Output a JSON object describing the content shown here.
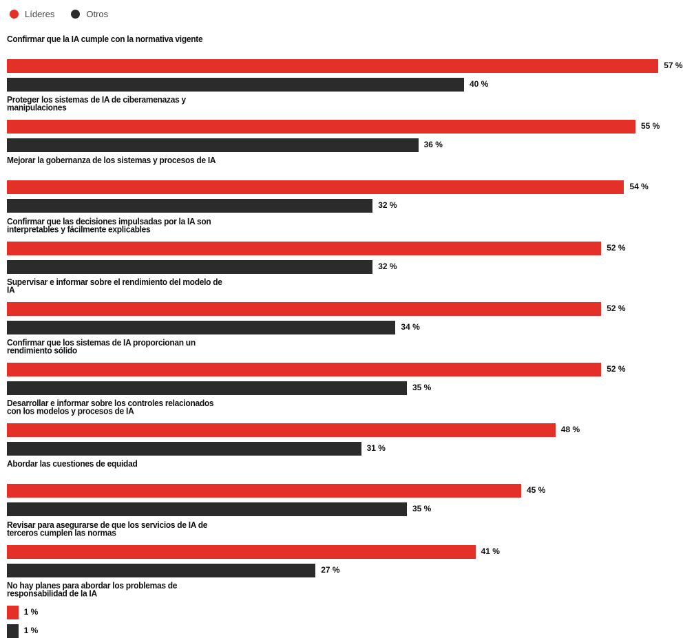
{
  "legend": [
    {
      "label": "Líderes",
      "color": "#e3312a"
    },
    {
      "label": "Otros",
      "color": "#2b2b2b"
    }
  ],
  "chart_data": {
    "type": "bar",
    "orientation": "horizontal",
    "unit": "%",
    "categories": [
      "Confirmar que la IA cumple con la normativa vigente",
      "Proteger los sistemas de IA de ciberamenazas y manipulaciones",
      "Mejorar la gobernanza de los sistemas y procesos de IA",
      "Confirmar que las decisiones impulsadas por la IA son interpretables y fácilmente explicables",
      "Supervisar e informar sobre el rendimiento del modelo de IA",
      "Confirmar que los sistemas de IA proporcionan un rendimiento sólido",
      "Desarrollar e informar sobre los controles relacionados con los modelos y procesos de IA",
      "Abordar las cuestiones de equidad",
      "Revisar para asegurarse de que los servicios de IA de terceros cumplen las normas",
      "No hay planes para abordar los problemas de responsabilidad de la IA"
    ],
    "series": [
      {
        "name": "Líderes",
        "color": "#e3312a",
        "values": [
          57,
          55,
          54,
          52,
          52,
          52,
          48,
          45,
          41,
          1
        ]
      },
      {
        "name": "Otros",
        "color": "#2b2b2b",
        "values": [
          40,
          36,
          32,
          32,
          34,
          35,
          31,
          35,
          27,
          1
        ]
      }
    ],
    "value_labels": {
      "Líderes": [
        "57 %",
        "55 %",
        "54 %",
        "52 %",
        "52 %",
        "52 %",
        "48 %",
        "45 %",
        "41 %",
        "1 %"
      ],
      "Otros": [
        "40 %",
        "36 %",
        "32 %",
        "32 %",
        "34 %",
        "35 %",
        "31 %",
        "35 %",
        "27 %",
        "1 %"
      ]
    },
    "label_lines": [
      [
        "Confirmar que la IA cumple con la normativa vigente"
      ],
      [
        "Proteger los sistemas de IA de ciberamenazas y",
        "manipulaciones"
      ],
      [
        "Mejorar la gobernanza de los sistemas y procesos de IA"
      ],
      [
        "Confirmar que las decisiones impulsadas por la IA son",
        "interpretables y fácilmente explicables"
      ],
      [
        "Supervisar e informar sobre el rendimiento del modelo de",
        "IA"
      ],
      [
        "Confirmar que los sistemas de IA proporcionan un",
        "rendimiento sólido"
      ],
      [
        "Desarrollar e informar sobre los controles relacionados",
        "con los modelos y procesos de IA"
      ],
      [
        "Abordar las cuestiones de equidad"
      ],
      [
        "Revisar para asegurarse de que los servicios de IA de",
        "terceros cumplen las normas"
      ],
      [
        "No hay planes para abordar los problemas de",
        "responsabilidad de la IA"
      ]
    ],
    "xlim": [
      0,
      60
    ],
    "grid": false,
    "legend_position": "top-left"
  }
}
